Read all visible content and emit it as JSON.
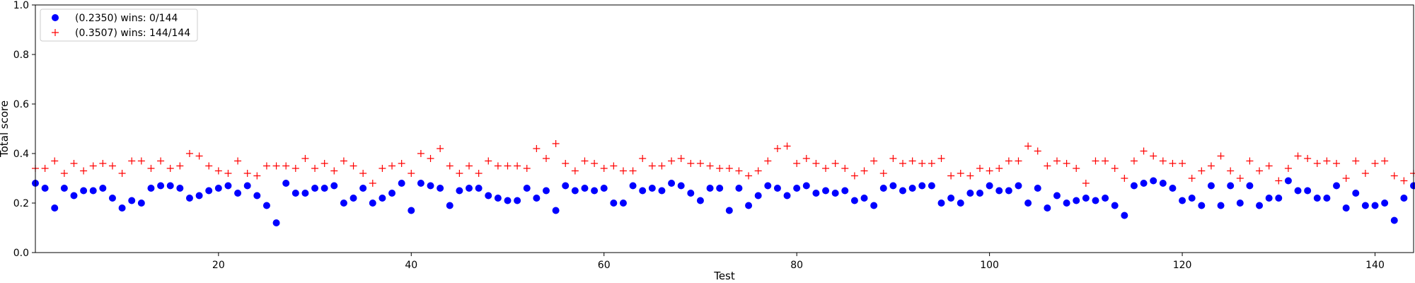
{
  "chart_data": {
    "type": "scatter",
    "title": "",
    "xlabel": "Test",
    "ylabel": "Total score",
    "xlim": [
      1,
      144
    ],
    "ylim": [
      0,
      1
    ],
    "xticks": [
      20,
      40,
      60,
      80,
      100,
      120,
      140
    ],
    "xtick_labels": [
      "20",
      "40",
      "60",
      "80",
      "100",
      "120",
      "140"
    ],
    "yticks": [
      0,
      0.2,
      0.4,
      0.6,
      0.8,
      1
    ],
    "ytick_labels": [
      "0.0",
      "0.2",
      "0.4",
      "0.6",
      "0.8",
      "1.0"
    ],
    "grid": false,
    "legend_position": "upper-left",
    "series": [
      {
        "name": "(0.2350) wins: 0/144",
        "marker": "circle",
        "color": "#0000ff",
        "values": [
          0.28,
          0.26,
          0.18,
          0.26,
          0.23,
          0.25,
          0.25,
          0.26,
          0.22,
          0.18,
          0.21,
          0.2,
          0.26,
          0.27,
          0.27,
          0.26,
          0.22,
          0.23,
          0.25,
          0.26,
          0.27,
          0.24,
          0.27,
          0.23,
          0.19,
          0.12,
          0.28,
          0.24,
          0.24,
          0.26,
          0.26,
          0.27,
          0.2,
          0.22,
          0.26,
          0.2,
          0.22,
          0.24,
          0.28,
          0.17,
          0.28,
          0.27,
          0.26,
          0.19,
          0.25,
          0.26,
          0.26,
          0.23,
          0.22,
          0.21,
          0.21,
          0.26,
          0.22,
          0.25,
          0.17,
          0.27,
          0.25,
          0.26,
          0.25,
          0.26,
          0.2,
          0.2,
          0.27,
          0.25,
          0.26,
          0.25,
          0.28,
          0.27,
          0.24,
          0.21,
          0.26,
          0.26,
          0.17,
          0.26,
          0.19,
          0.23,
          0.27,
          0.26,
          0.23,
          0.26,
          0.27,
          0.24,
          0.25,
          0.24,
          0.25,
          0.21,
          0.22,
          0.19,
          0.26,
          0.27,
          0.25,
          0.26,
          0.27,
          0.27,
          0.2,
          0.22,
          0.2,
          0.24,
          0.24,
          0.27,
          0.25,
          0.25,
          0.27,
          0.2,
          0.26,
          0.18,
          0.23,
          0.2,
          0.21,
          0.22,
          0.21,
          0.22,
          0.19,
          0.15,
          0.27,
          0.28,
          0.29,
          0.28,
          0.26,
          0.21,
          0.22,
          0.19,
          0.27,
          0.19,
          0.27,
          0.2,
          0.27,
          0.19,
          0.22,
          0.22,
          0.29,
          0.25,
          0.25,
          0.22,
          0.22,
          0.27,
          0.18,
          0.24,
          0.19,
          0.19,
          0.2,
          0.13,
          0.22,
          0.27
        ]
      },
      {
        "name": "(0.3507) wins: 144/144",
        "marker": "plus",
        "color": "#ff0000",
        "values": [
          0.34,
          0.34,
          0.37,
          0.32,
          0.36,
          0.33,
          0.35,
          0.36,
          0.35,
          0.32,
          0.37,
          0.37,
          0.34,
          0.37,
          0.34,
          0.35,
          0.4,
          0.39,
          0.35,
          0.33,
          0.32,
          0.37,
          0.32,
          0.31,
          0.35,
          0.35,
          0.35,
          0.34,
          0.38,
          0.34,
          0.36,
          0.33,
          0.37,
          0.35,
          0.32,
          0.28,
          0.34,
          0.35,
          0.36,
          0.32,
          0.4,
          0.38,
          0.42,
          0.35,
          0.32,
          0.35,
          0.32,
          0.37,
          0.35,
          0.35,
          0.35,
          0.34,
          0.42,
          0.38,
          0.44,
          0.36,
          0.33,
          0.37,
          0.36,
          0.34,
          0.35,
          0.33,
          0.33,
          0.38,
          0.35,
          0.35,
          0.37,
          0.38,
          0.36,
          0.36,
          0.35,
          0.34,
          0.34,
          0.33,
          0.31,
          0.33,
          0.37,
          0.42,
          0.43,
          0.36,
          0.38,
          0.36,
          0.34,
          0.36,
          0.34,
          0.31,
          0.33,
          0.37,
          0.32,
          0.38,
          0.36,
          0.37,
          0.36,
          0.36,
          0.38,
          0.31,
          0.32,
          0.31,
          0.34,
          0.33,
          0.34,
          0.37,
          0.37,
          0.43,
          0.41,
          0.35,
          0.37,
          0.36,
          0.34,
          0.28,
          0.37,
          0.37,
          0.34,
          0.3,
          0.37,
          0.41,
          0.39,
          0.37,
          0.36,
          0.36,
          0.3,
          0.33,
          0.35,
          0.39,
          0.33,
          0.3,
          0.37,
          0.33,
          0.35,
          0.29,
          0.34,
          0.39,
          0.38,
          0.36,
          0.37,
          0.36,
          0.3,
          0.37,
          0.32,
          0.36,
          0.37,
          0.31,
          0.29,
          0.32
        ]
      }
    ]
  }
}
